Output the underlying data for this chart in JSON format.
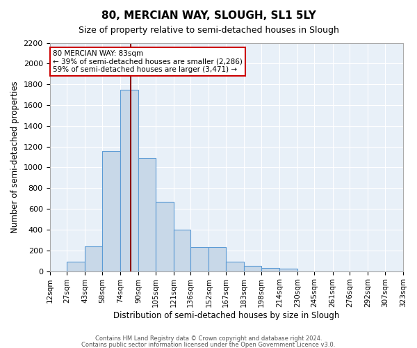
{
  "title": "80, MERCIAN WAY, SLOUGH, SL1 5LY",
  "subtitle": "Size of property relative to semi-detached houses in Slough",
  "xlabel": "Distribution of semi-detached houses by size in Slough",
  "ylabel": "Number of semi-detached properties",
  "bin_edges": [
    12,
    27,
    43,
    58,
    74,
    90,
    105,
    121,
    136,
    152,
    167,
    183,
    198,
    214,
    230,
    245,
    261,
    276,
    292,
    307,
    323
  ],
  "bar_heights": [
    0,
    90,
    240,
    1160,
    1750,
    1090,
    670,
    400,
    235,
    235,
    90,
    50,
    30,
    25,
    0,
    0,
    0,
    0,
    0,
    0
  ],
  "bar_color": "#c8d8e8",
  "bar_edge_color": "#5b9bd5",
  "property_size": 83,
  "vline_color": "#8b0000",
  "annotation_line1": "80 MERCIAN WAY: 83sqm",
  "annotation_line2": "← 39% of semi-detached houses are smaller (2,286)",
  "annotation_line3": "59% of semi-detached houses are larger (3,471) →",
  "annotation_box_color": "#ffffff",
  "annotation_box_edge_color": "#cc0000",
  "ylim": [
    0,
    2200
  ],
  "yticks": [
    0,
    200,
    400,
    600,
    800,
    1000,
    1200,
    1400,
    1600,
    1800,
    2000,
    2200
  ],
  "background_color": "#e8f0f8",
  "grid_color": "#ffffff",
  "footer_line1": "Contains HM Land Registry data © Crown copyright and database right 2024.",
  "footer_line2": "Contains public sector information licensed under the Open Government Licence v3.0."
}
